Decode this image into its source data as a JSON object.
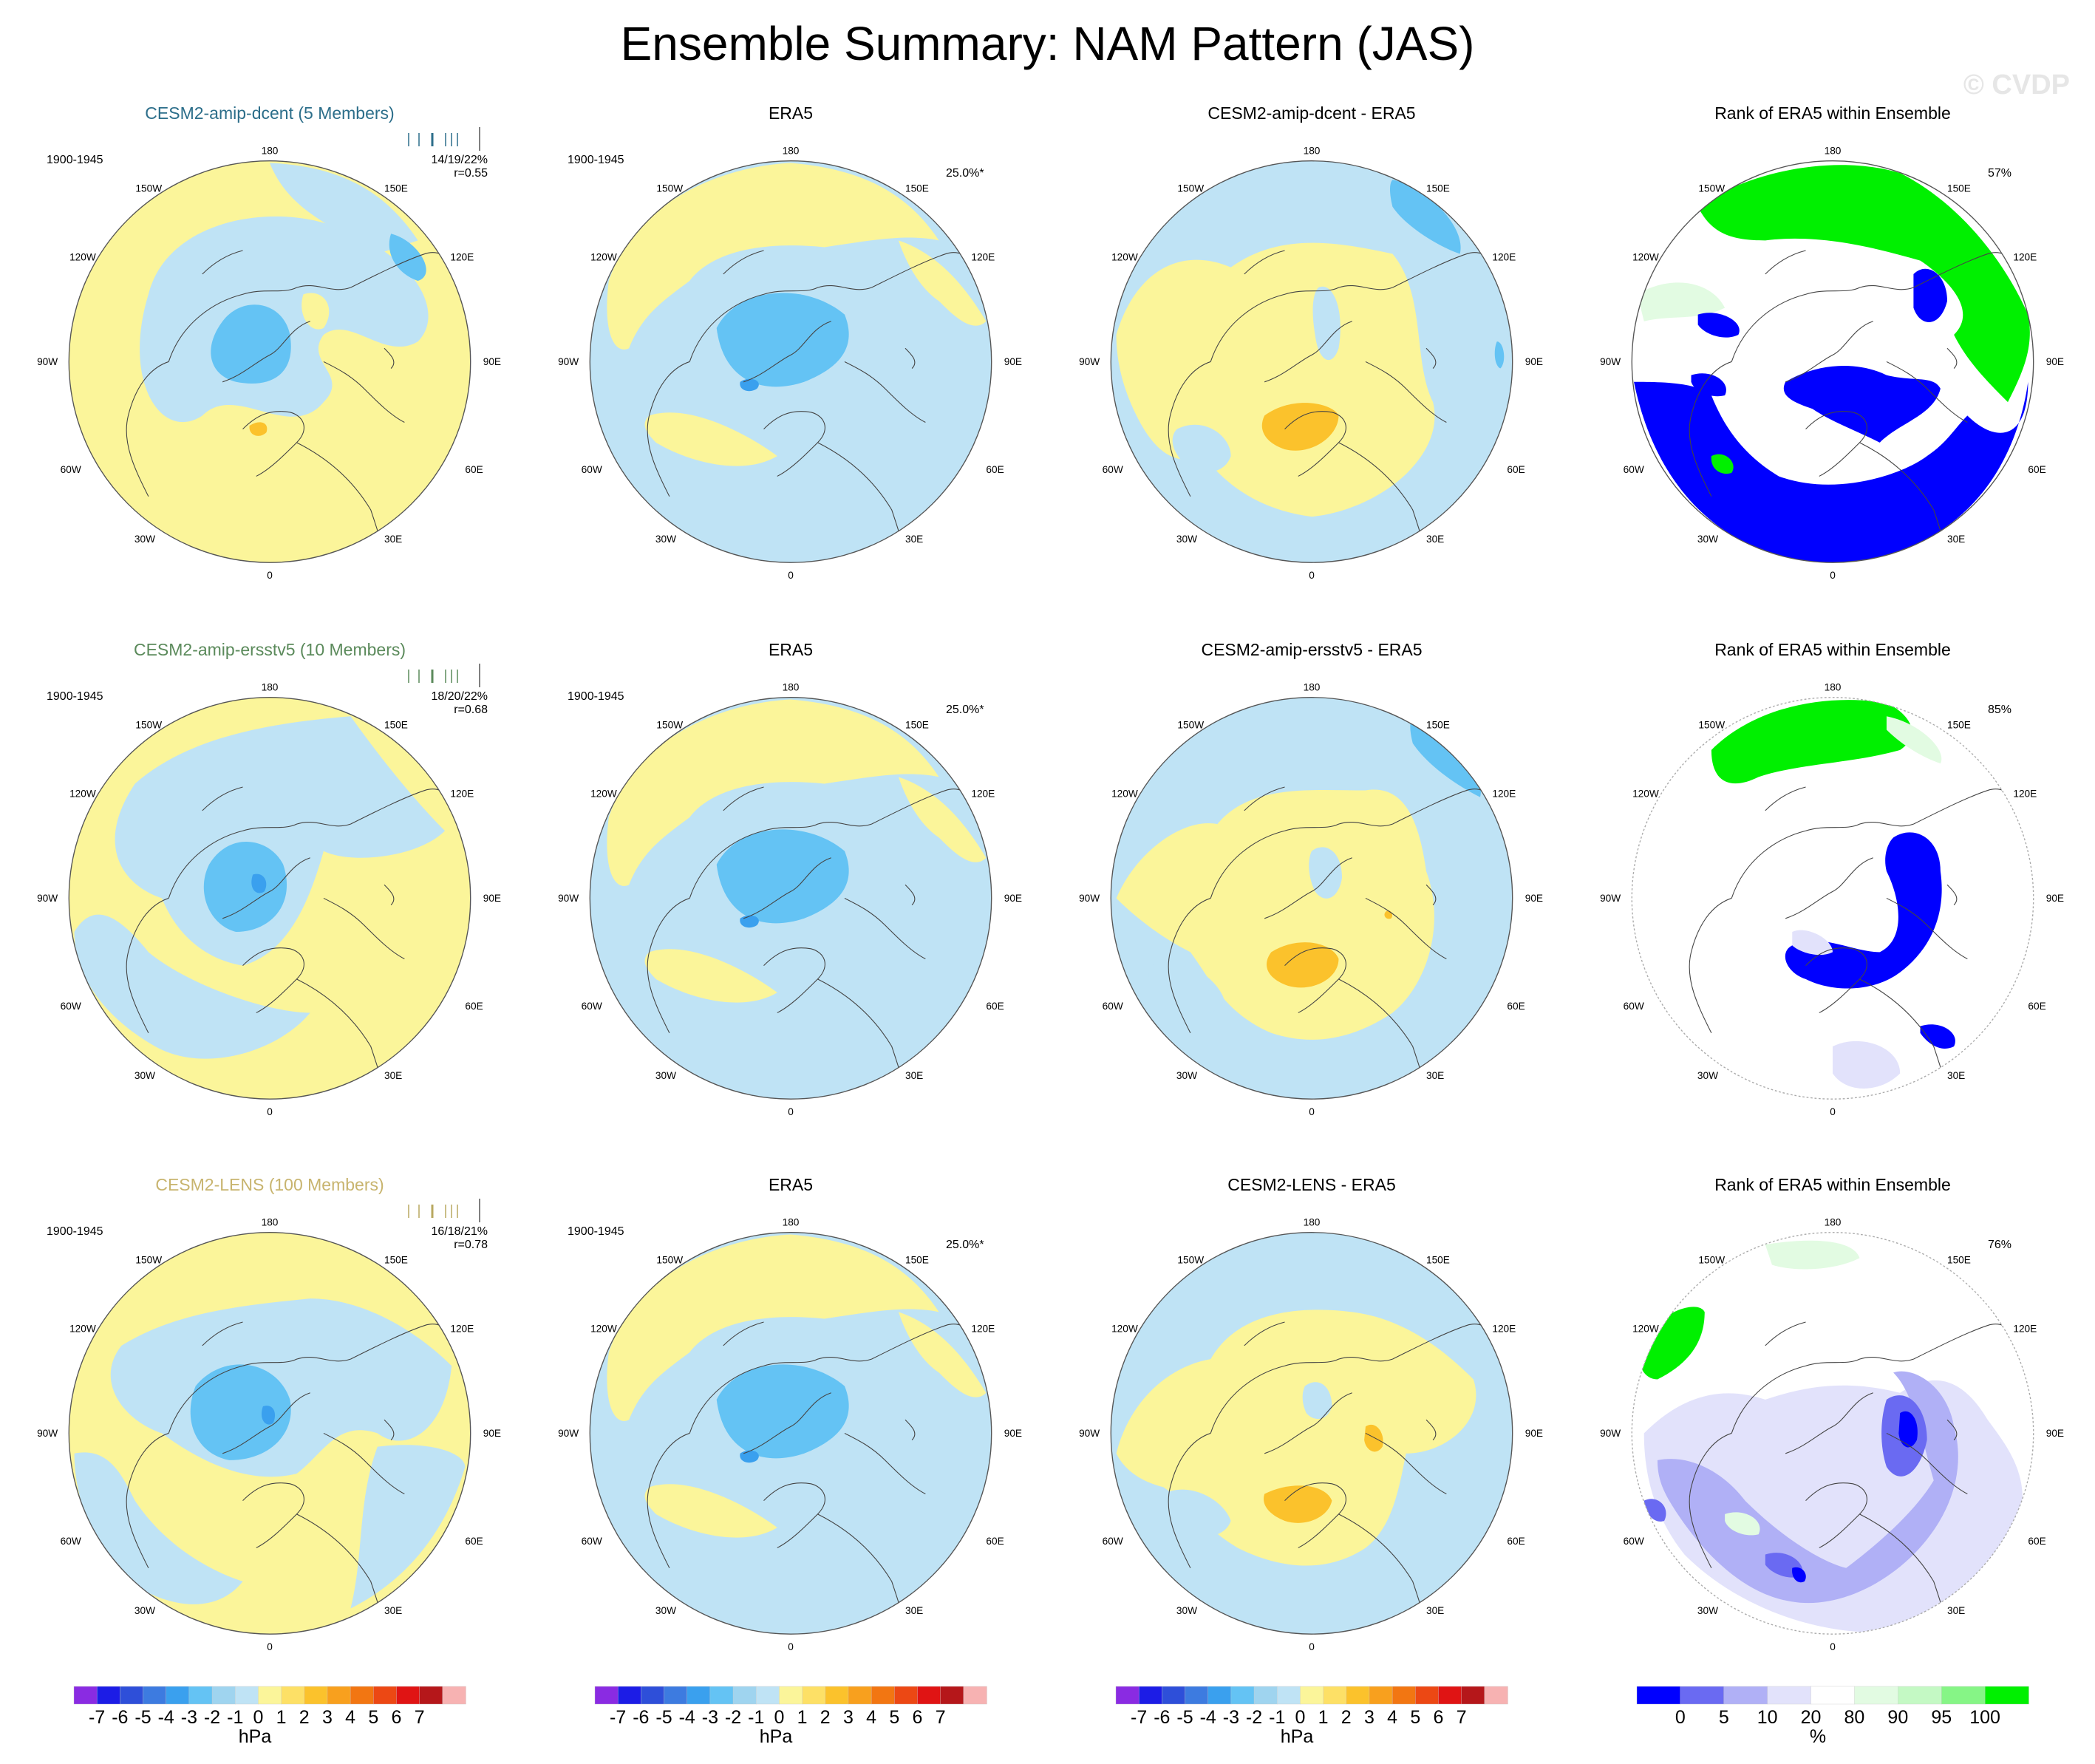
{
  "title": "Ensemble Summary: NAM Pattern (JAS)",
  "watermark": "© CVDP",
  "lon_labels": {
    "top": "180",
    "bottom": "0",
    "left": "90W",
    "right": "90E",
    "ul1": "150W",
    "ul2": "120W",
    "ll1": "60W",
    "ll2": "30W",
    "ur1": "150E",
    "ur2": "120E",
    "lr1": "60E",
    "lr2": "30E"
  },
  "rows": [
    {
      "model": {
        "title": "CESM2-amip-dcent (5 Members)",
        "title_color": "#2c6e8a",
        "period": "1900-1945",
        "stats": "14/19/22%",
        "r": "r=0.55",
        "bar_color": "#2c6e8a"
      },
      "obs": {
        "title": "ERA5",
        "period": "1900-1945",
        "pct": "25.0%*"
      },
      "diff": {
        "title": "CESM2-amip-dcent - ERA5"
      },
      "rank": {
        "title": "Rank of ERA5 within Ensemble",
        "pct": "57%"
      }
    },
    {
      "model": {
        "title": "CESM2-amip-ersstv5 (10 Members)",
        "title_color": "#5b8a5b",
        "period": "1900-1945",
        "stats": "18/20/22%",
        "r": "r=0.68",
        "bar_color": "#5b8a5b"
      },
      "obs": {
        "title": "ERA5",
        "period": "1900-1945",
        "pct": "25.0%*"
      },
      "diff": {
        "title": "CESM2-amip-ersstv5 - ERA5"
      },
      "rank": {
        "title": "Rank of ERA5 within Ensemble",
        "pct": "85%"
      }
    },
    {
      "model": {
        "title": "CESM2-LENS (100 Members)",
        "title_color": "#c8b46e",
        "period": "1900-1945",
        "stats": "16/18/21%",
        "r": "r=0.78",
        "bar_color": "#b8a860"
      },
      "obs": {
        "title": "ERA5",
        "period": "1900-1945",
        "pct": "25.0%*"
      },
      "diff": {
        "title": "CESM2-LENS - ERA5"
      },
      "rank": {
        "title": "Rank of ERA5 within Ensemble",
        "pct": "76%"
      }
    }
  ],
  "colorbar_hpa": {
    "colors": [
      "#8a2be2",
      "#1c1ce6",
      "#2e4fd9",
      "#3d7be0",
      "#3aa0ee",
      "#64c3f4",
      "#9fd4ef",
      "#bfe3f5",
      "#fbf59a",
      "#fde066",
      "#fbc22c",
      "#f8a01e",
      "#f27612",
      "#ec4814",
      "#e01414",
      "#b5171a",
      "#f7b2b2"
    ],
    "labels": [
      "-7",
      "-6",
      "-5",
      "-4",
      "-3",
      "-2",
      "-1",
      "0",
      "1",
      "2",
      "3",
      "4",
      "5",
      "6",
      "7"
    ],
    "unit": "hPa"
  },
  "colorbar_rank": {
    "colors": [
      "#0000ff",
      "#6a6af2",
      "#b0b0f6",
      "#e2e2fb",
      "#ffffff",
      "#e2fbe2",
      "#c4f9c4",
      "#86f586",
      "#00f000"
    ],
    "labels": [
      "0",
      "5",
      "10",
      "20",
      "80",
      "90",
      "95",
      "100"
    ],
    "unit": "%"
  }
}
